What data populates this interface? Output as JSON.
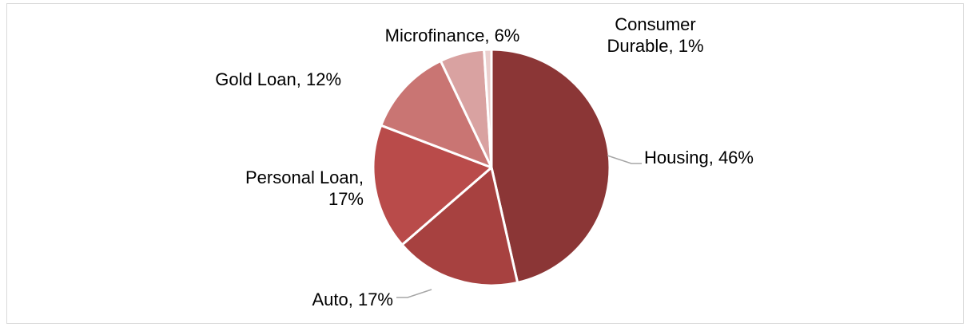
{
  "chart_data": {
    "type": "pie",
    "slices": [
      {
        "label": "Housing",
        "value": 46,
        "color": "#8b3636",
        "label_lines": [
          "Housing, 46%"
        ]
      },
      {
        "label": "Auto",
        "value": 17,
        "color": "#a74140",
        "label_lines": [
          "Auto, 17%"
        ]
      },
      {
        "label": "Personal Loan",
        "value": 17,
        "color": "#b94b4a",
        "label_lines": [
          "Personal Loan,",
          "17%"
        ]
      },
      {
        "label": "Gold Loan",
        "value": 12,
        "color": "#c97573",
        "label_lines": [
          "Gold Loan, 12%"
        ]
      },
      {
        "label": "Microfinance",
        "value": 6,
        "color": "#d9a2a1",
        "label_lines": [
          "Microfinance, 6%"
        ]
      },
      {
        "label": "Consumer Durable",
        "value": 1,
        "color": "#ebcfce",
        "label_lines": [
          "Consumer",
          "Durable, 1%"
        ]
      }
    ],
    "start_angle_deg": 0,
    "direction": "clockwise",
    "leader_line_color": "#a6a6a6",
    "slice_border_color": "#ffffff"
  }
}
